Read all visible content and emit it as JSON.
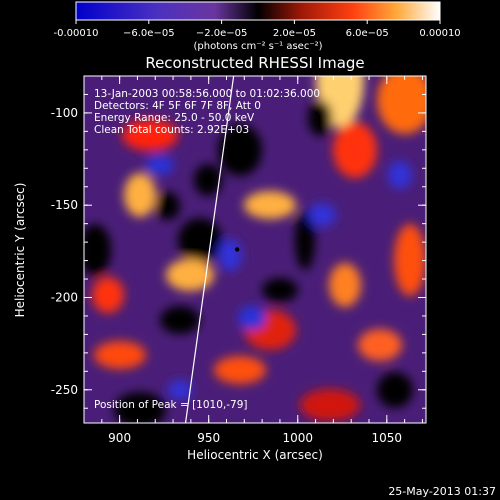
{
  "colors": {
    "background": "#000000",
    "text": "#ffffff",
    "colormap": [
      "#0000cc",
      "#2828d8",
      "#5a3ab0",
      "#7a3ea8",
      "#000000",
      "#7a1010",
      "#d02010",
      "#ff5a10",
      "#ffb040",
      "#ffffff"
    ]
  },
  "footer": {
    "timestamp": "25-May-2013 01:37"
  },
  "chart_data": {
    "type": "heatmap",
    "title": "Reconstructed RHESSI Image",
    "xlabel": "Heliocentric X (arcsec)",
    "ylabel": "Heliocentric Y (arcsec)",
    "xlim": [
      880,
      1072
    ],
    "ylim": [
      -268,
      -80
    ],
    "xticks": [
      900,
      950,
      1000,
      1050
    ],
    "yticks": [
      -100,
      -150,
      -200,
      -250
    ],
    "colorbar": {
      "range": [
        -0.0001,
        0.0001
      ],
      "ticks": [
        -0.0001,
        -6e-05,
        -2e-05,
        2e-05,
        6e-05,
        0.0001
      ],
      "tick_labels": [
        "-0.00010",
        "−6.0e−05",
        "−2.0e−05",
        "2.0e−05",
        "6.0e−05",
        "0.00010"
      ],
      "units": "(photons cm⁻² s⁻¹ asec⁻²)"
    },
    "annotations": [
      "13-Jan-2003 00:58:56.000 to 01:02:36.000",
      "Detectors: 4F 5F 6F 7F 8F, Att 0",
      "Energy Range: 25.0 - 50.0 keV",
      "Clean    Total counts: 2.92E+03"
    ],
    "peak_label": "Position of Peak = [1010,-79]",
    "marker": {
      "x": 966,
      "y": -174
    },
    "limb_line": [
      [
        937,
        -268
      ],
      [
        964,
        -80
      ]
    ]
  }
}
